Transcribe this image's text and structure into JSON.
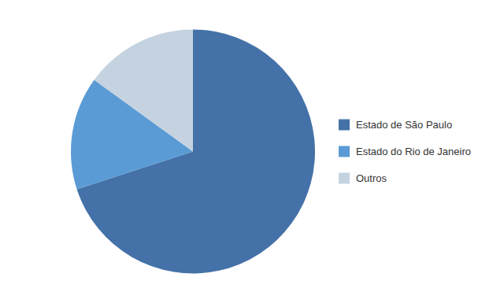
{
  "chart_data": {
    "type": "pie",
    "categories": [
      "Estado de São Paulo",
      "Estado do Rio de Janeiro",
      "Outros"
    ],
    "values": [
      70,
      15,
      15
    ],
    "colors": [
      "#4472A8",
      "#5B9BD5",
      "#C5D3E0"
    ],
    "legend": "right"
  }
}
